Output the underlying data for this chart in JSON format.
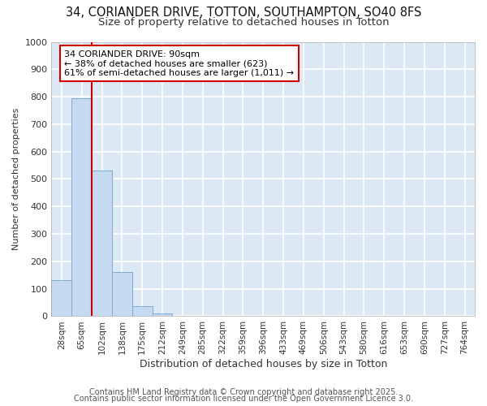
{
  "title1": "34, CORIANDER DRIVE, TOTTON, SOUTHAMPTON, SO40 8FS",
  "title2": "Size of property relative to detached houses in Totton",
  "xlabel": "Distribution of detached houses by size in Totton",
  "ylabel": "Number of detached properties",
  "categories": [
    "28sqm",
    "65sqm",
    "102sqm",
    "138sqm",
    "175sqm",
    "212sqm",
    "249sqm",
    "285sqm",
    "322sqm",
    "359sqm",
    "396sqm",
    "433sqm",
    "469sqm",
    "506sqm",
    "543sqm",
    "580sqm",
    "616sqm",
    "653sqm",
    "690sqm",
    "727sqm",
    "764sqm"
  ],
  "values": [
    133,
    795,
    530,
    162,
    38,
    10,
    0,
    0,
    0,
    0,
    0,
    0,
    0,
    0,
    0,
    0,
    0,
    0,
    0,
    0,
    0
  ],
  "bar_color": "#c5d9f0",
  "bar_edge_color": "#7aadd4",
  "red_line_x": 1.5,
  "annotation_text": "34 CORIANDER DRIVE: 90sqm\n← 38% of detached houses are smaller (623)\n61% of semi-detached houses are larger (1,011) →",
  "annotation_box_color": "#ffffff",
  "annotation_box_edge_color": "#cc0000",
  "annotation_text_color": "#000000",
  "red_line_color": "#cc0000",
  "ylim": [
    0,
    1000
  ],
  "yticks": [
    0,
    100,
    200,
    300,
    400,
    500,
    600,
    700,
    800,
    900,
    1000
  ],
  "footer1": "Contains HM Land Registry data © Crown copyright and database right 2025.",
  "footer2": "Contains public sector information licensed under the Open Government Licence 3.0.",
  "fig_background_color": "#ffffff",
  "plot_background_color": "#dce9f5",
  "grid_color": "#ffffff",
  "title1_fontsize": 10.5,
  "title2_fontsize": 9.5,
  "footer_fontsize": 7,
  "ylabel_fontsize": 8,
  "xlabel_fontsize": 9
}
